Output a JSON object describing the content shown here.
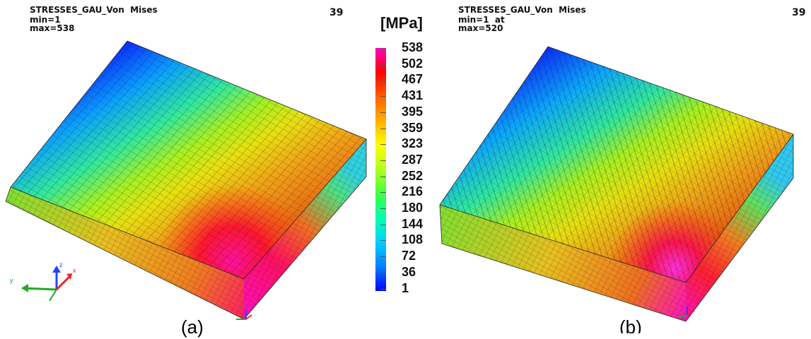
{
  "panel_a": {
    "title": "STRESSES_GAU_Von  Mises",
    "min": "min=1",
    "max": "max=538",
    "frame": "39",
    "caption": "(a)"
  },
  "panel_b": {
    "title": "STRESSES_GAU_Von  Mises",
    "min": "min=1  at",
    "max": "max=520",
    "frame": "39",
    "caption": "(b)"
  },
  "legend": {
    "unit": "[MPa]",
    "ticks": [
      "538",
      "502",
      "467",
      "431",
      "395",
      "359",
      "323",
      "287",
      "252",
      "216",
      "180",
      "144",
      "108",
      "72",
      "36",
      "1"
    ],
    "colors": [
      "#0000ff",
      "#0080ff",
      "#00d0ff",
      "#00ffb0",
      "#40ff40",
      "#b0ff20",
      "#ffff00",
      "#ffb000",
      "#ff6000",
      "#ff0000",
      "#ff00c0"
    ]
  },
  "axes": {
    "x": "x",
    "y": "y",
    "z": "z"
  }
}
